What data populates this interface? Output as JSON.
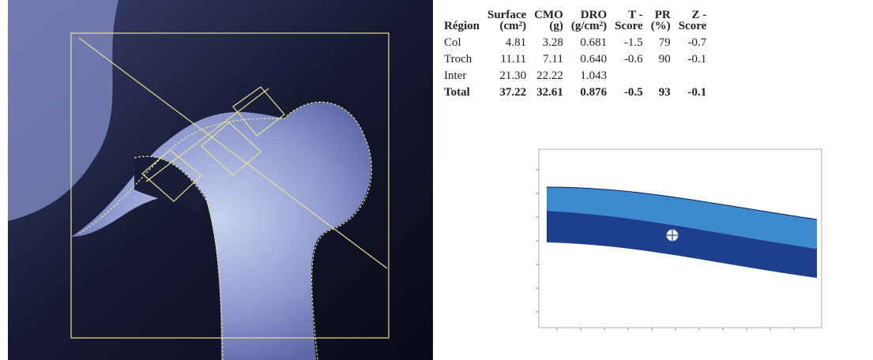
{
  "table": {
    "header": [
      [
        "Région"
      ],
      [
        "Surface",
        "(cm²)"
      ],
      [
        "CMO",
        "(g)"
      ],
      [
        "DRO",
        "(g/cm²)"
      ],
      [
        "T -",
        "Score"
      ],
      [
        "PR",
        "(%)"
      ],
      [
        "Z -",
        "Score"
      ]
    ],
    "rows": [
      [
        "Col",
        "4.81",
        "3.28",
        "0.681",
        "-1.5",
        "79",
        "-0.7"
      ],
      [
        "Troch",
        "11.11",
        "7.11",
        "0.640",
        "-0.6",
        "90",
        "-0.1"
      ],
      [
        "Inter",
        "21.30",
        "22.22",
        "1.043"
      ],
      [
        "Total",
        "37.22",
        "32.61",
        "0.876",
        "-0.5",
        "93",
        "-0.1"
      ]
    ]
  }
}
